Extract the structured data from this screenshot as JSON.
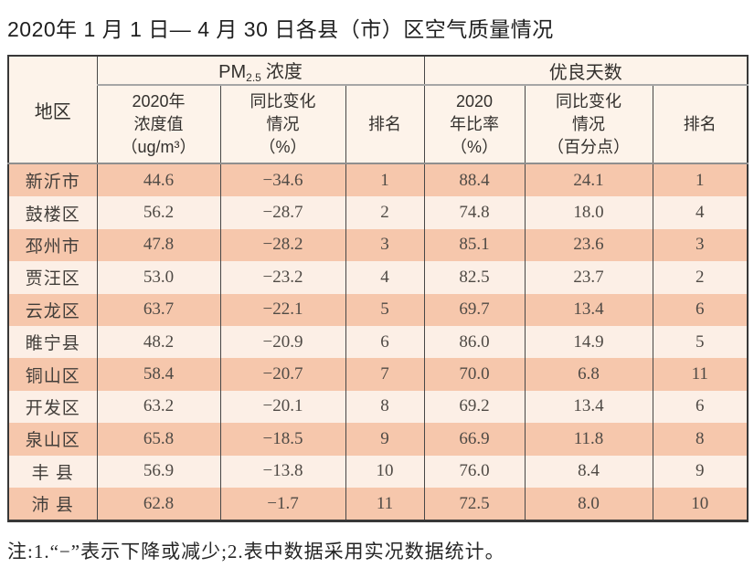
{
  "title": "2020年 1 月 1 日— 4 月 30 日各县（市）区空气质量情况",
  "table": {
    "col_region": "地区",
    "group_pm": {
      "prefix": "PM",
      "sub": "2.5",
      "suffix": "浓度"
    },
    "group_days": "优良天数",
    "subheaders": {
      "pm_value": "2020年\n浓度值\n（ug/m³）",
      "pm_change": "同比变化\n情况\n（%）",
      "pm_rank": "排名",
      "days_ratio": "2020\n年比率\n（%）",
      "days_change": "同比变化\n情况\n（百分点）",
      "days_rank": "排名"
    },
    "rows": [
      [
        "新沂市",
        "44.6",
        "−34.6",
        "1",
        "88.4",
        "24.1",
        "1"
      ],
      [
        "鼓楼区",
        "56.2",
        "−28.7",
        "2",
        "74.8",
        "18.0",
        "4"
      ],
      [
        "邳州市",
        "47.8",
        "−28.2",
        "3",
        "85.1",
        "23.6",
        "3"
      ],
      [
        "贾汪区",
        "53.0",
        "−23.2",
        "4",
        "82.5",
        "23.7",
        "2"
      ],
      [
        "云龙区",
        "63.7",
        "−22.1",
        "5",
        "69.7",
        "13.4",
        "6"
      ],
      [
        "睢宁县",
        "48.2",
        "−20.9",
        "6",
        "86.0",
        "14.9",
        "5"
      ],
      [
        "铜山区",
        "58.4",
        "−20.7",
        "7",
        "70.0",
        "6.8",
        "11"
      ],
      [
        "开发区",
        "63.2",
        "−20.1",
        "8",
        "69.2",
        "13.4",
        "6"
      ],
      [
        "泉山区",
        "65.8",
        "−18.5",
        "9",
        "66.9",
        "11.8",
        "8"
      ],
      [
        "丰 县",
        "56.9",
        "−13.8",
        "10",
        "76.0",
        "8.4",
        "9"
      ],
      [
        "沛 县",
        "62.8",
        "−1.7",
        "11",
        "72.5",
        "8.0",
        "10"
      ]
    ]
  },
  "note": "注:1.“−”表示下降或减少;2.表中数据采用实况数据统计。",
  "theme": {
    "band_dark": "#f6c7ac",
    "band_light": "#fcefe6",
    "header_bg": "#fdf3ea",
    "border_dark": "#383838",
    "border_gray": "#8f8f8f",
    "text": "#4f4a45"
  }
}
